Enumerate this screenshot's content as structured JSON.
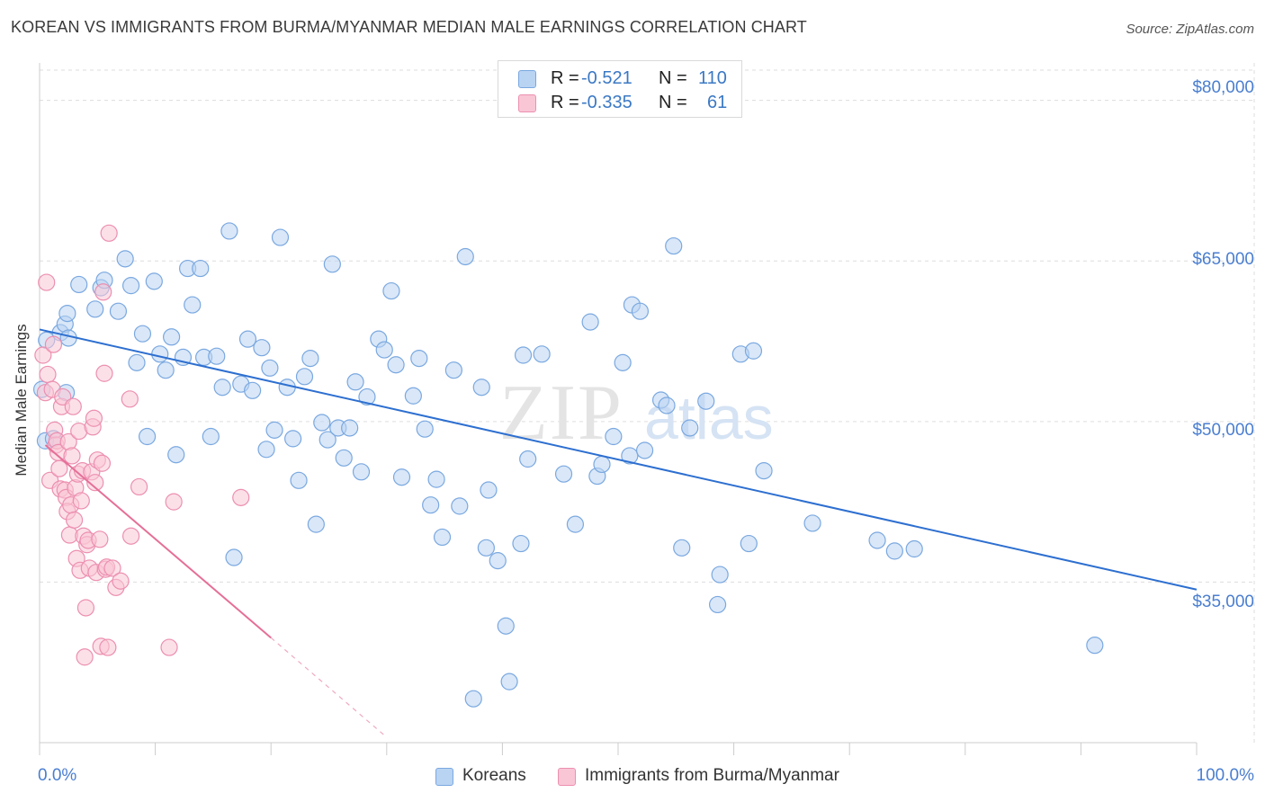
{
  "title": "KOREAN VS IMMIGRANTS FROM BURMA/MYANMAR MEDIAN MALE EARNINGS CORRELATION CHART",
  "source": "Source: ZipAtlas.com",
  "watermark": {
    "zip": "ZIP",
    "atlas": "atlas"
  },
  "colors": {
    "blue_fill": "#b9d3f3",
    "blue_stroke": "#7aa8e0",
    "blue_line": "#2d6fd0",
    "pink_fill": "#f9c6d6",
    "pink_stroke": "#ec8fb0",
    "pink_line": "#e56f98",
    "grid": "#dddddd",
    "axis_text": "#4a7ed0"
  },
  "legend": {
    "rows": [
      {
        "r_label": "R =",
        "r_value": "-0.521",
        "n_label": "N =",
        "n_value": "110"
      },
      {
        "r_label": "R =",
        "r_value": "-0.335",
        "n_label": "N =",
        "n_value": "61"
      }
    ]
  },
  "bottom_legend": [
    "Koreans",
    "Immigrants from Burma/Myanmar"
  ],
  "axes": {
    "ylabel": "Median Male Earnings",
    "x_min_label": "0.0%",
    "x_max_label": "100.0%",
    "y_tick_labels": [
      "$80,000",
      "$65,000",
      "$50,000",
      "$35,000"
    ]
  },
  "chart_data": {
    "type": "scatter",
    "title": "KOREAN VS IMMIGRANTS FROM BURMA/MYANMAR MEDIAN MALE EARNINGS CORRELATION CHART",
    "xlabel": "",
    "ylabel": "Median Male Earnings",
    "xlim": [
      0,
      100
    ],
    "ylim": [
      20000,
      83500
    ],
    "y_ticks": [
      35000,
      50000,
      65000,
      80000
    ],
    "x_ticks": [
      0,
      10,
      20,
      30,
      40,
      50,
      60,
      70,
      80,
      90,
      100
    ],
    "grid": true,
    "series": [
      {
        "name": "Koreans",
        "color": "#7aa8e0",
        "r": -0.521,
        "n": 110,
        "trend": {
          "x": [
            0,
            100
          ],
          "y": [
            58600,
            34300
          ]
        },
        "points": [
          [
            0.2,
            53000
          ],
          [
            0.5,
            48200
          ],
          [
            0.6,
            57600
          ],
          [
            1.2,
            48400
          ],
          [
            1.8,
            58300
          ],
          [
            2.2,
            59100
          ],
          [
            2.3,
            52700
          ],
          [
            2.4,
            60100
          ],
          [
            2.5,
            57800
          ],
          [
            3.4,
            62800
          ],
          [
            4.8,
            60500
          ],
          [
            5.3,
            62500
          ],
          [
            5.6,
            63200
          ],
          [
            6.8,
            60300
          ],
          [
            7.4,
            65200
          ],
          [
            7.9,
            62700
          ],
          [
            8.4,
            55500
          ],
          [
            8.9,
            58200
          ],
          [
            9.3,
            48600
          ],
          [
            9.9,
            63100
          ],
          [
            10.4,
            56300
          ],
          [
            10.9,
            54800
          ],
          [
            11.4,
            57900
          ],
          [
            11.8,
            46900
          ],
          [
            12.4,
            56000
          ],
          [
            12.8,
            64300
          ],
          [
            13.2,
            60900
          ],
          [
            13.9,
            64300
          ],
          [
            14.2,
            56000
          ],
          [
            14.8,
            48600
          ],
          [
            15.3,
            56100
          ],
          [
            15.8,
            53200
          ],
          [
            16.4,
            67800
          ],
          [
            16.8,
            37300
          ],
          [
            17.4,
            53500
          ],
          [
            18.0,
            57700
          ],
          [
            18.4,
            52900
          ],
          [
            19.2,
            56900
          ],
          [
            19.6,
            47400
          ],
          [
            19.9,
            55000
          ],
          [
            20.3,
            49200
          ],
          [
            20.8,
            67200
          ],
          [
            21.4,
            53200
          ],
          [
            21.9,
            48400
          ],
          [
            22.4,
            44500
          ],
          [
            22.9,
            54200
          ],
          [
            23.4,
            55900
          ],
          [
            23.9,
            40400
          ],
          [
            24.4,
            49900
          ],
          [
            24.9,
            48300
          ],
          [
            25.3,
            64700
          ],
          [
            25.8,
            49400
          ],
          [
            26.3,
            46600
          ],
          [
            26.8,
            49400
          ],
          [
            27.3,
            53700
          ],
          [
            27.8,
            45300
          ],
          [
            28.3,
            52300
          ],
          [
            29.3,
            57700
          ],
          [
            29.8,
            56700
          ],
          [
            30.4,
            62200
          ],
          [
            30.8,
            55300
          ],
          [
            31.3,
            44800
          ],
          [
            32.3,
            52400
          ],
          [
            32.8,
            55900
          ],
          [
            33.3,
            49300
          ],
          [
            33.8,
            42200
          ],
          [
            34.3,
            44600
          ],
          [
            34.8,
            39200
          ],
          [
            35.8,
            54800
          ],
          [
            36.3,
            42100
          ],
          [
            36.8,
            65400
          ],
          [
            37.5,
            24100
          ],
          [
            38.2,
            53200
          ],
          [
            38.6,
            38200
          ],
          [
            38.8,
            43600
          ],
          [
            39.6,
            37000
          ],
          [
            40.3,
            30900
          ],
          [
            40.6,
            25700
          ],
          [
            41.6,
            38600
          ],
          [
            41.8,
            56200
          ],
          [
            42.2,
            46500
          ],
          [
            43.4,
            56300
          ],
          [
            45.3,
            45100
          ],
          [
            46.3,
            40400
          ],
          [
            47.6,
            59300
          ],
          [
            48.2,
            44900
          ],
          [
            48.6,
            46000
          ],
          [
            49.6,
            48600
          ],
          [
            50.4,
            55500
          ],
          [
            51.0,
            46800
          ],
          [
            51.2,
            60900
          ],
          [
            51.9,
            60300
          ],
          [
            52.3,
            47300
          ],
          [
            53.7,
            52000
          ],
          [
            54.2,
            51500
          ],
          [
            54.8,
            66400
          ],
          [
            55.5,
            38200
          ],
          [
            56.2,
            49400
          ],
          [
            57.6,
            51900
          ],
          [
            58.6,
            32900
          ],
          [
            58.8,
            35700
          ],
          [
            60.6,
            56300
          ],
          [
            61.3,
            38600
          ],
          [
            61.7,
            56600
          ],
          [
            62.6,
            45400
          ],
          [
            66.8,
            40500
          ],
          [
            72.4,
            38900
          ],
          [
            73.9,
            37900
          ],
          [
            75.6,
            38100
          ],
          [
            91.2,
            29100
          ]
        ]
      },
      {
        "name": "Immigrants from Burma/Myanmar",
        "color": "#ec8fb0",
        "r": -0.335,
        "n": 61,
        "trend": {
          "x": [
            0.5,
            20
          ],
          "y": [
            47800,
            29800
          ],
          "extension": {
            "x": [
              20,
              30
            ],
            "y": [
              29800,
              20500
            ]
          }
        },
        "points": [
          [
            0.3,
            56200
          ],
          [
            0.5,
            52700
          ],
          [
            0.6,
            63000
          ],
          [
            0.7,
            54400
          ],
          [
            0.9,
            44500
          ],
          [
            1.1,
            53000
          ],
          [
            1.2,
            57200
          ],
          [
            1.3,
            49200
          ],
          [
            1.4,
            47800
          ],
          [
            1.5,
            48200
          ],
          [
            1.6,
            47100
          ],
          [
            1.7,
            45600
          ],
          [
            1.8,
            43700
          ],
          [
            1.9,
            51400
          ],
          [
            2.0,
            52300
          ],
          [
            2.2,
            43600
          ],
          [
            2.3,
            42900
          ],
          [
            2.4,
            41600
          ],
          [
            2.5,
            48100
          ],
          [
            2.6,
            39400
          ],
          [
            2.7,
            42200
          ],
          [
            2.8,
            46800
          ],
          [
            2.9,
            51400
          ],
          [
            3.0,
            40800
          ],
          [
            3.1,
            43800
          ],
          [
            3.2,
            37200
          ],
          [
            3.3,
            45100
          ],
          [
            3.4,
            49100
          ],
          [
            3.5,
            36100
          ],
          [
            3.6,
            42600
          ],
          [
            3.7,
            45400
          ],
          [
            3.8,
            39300
          ],
          [
            3.9,
            28000
          ],
          [
            4.0,
            32600
          ],
          [
            4.1,
            38500
          ],
          [
            4.2,
            38900
          ],
          [
            4.3,
            36300
          ],
          [
            4.5,
            45300
          ],
          [
            4.6,
            49500
          ],
          [
            4.7,
            50300
          ],
          [
            4.8,
            44300
          ],
          [
            4.9,
            35900
          ],
          [
            5.0,
            46400
          ],
          [
            5.2,
            39000
          ],
          [
            5.3,
            29000
          ],
          [
            5.4,
            46100
          ],
          [
            5.5,
            62100
          ],
          [
            5.6,
            54500
          ],
          [
            5.7,
            36200
          ],
          [
            5.8,
            36400
          ],
          [
            5.9,
            28900
          ],
          [
            6.0,
            67600
          ],
          [
            6.3,
            36300
          ],
          [
            6.6,
            34500
          ],
          [
            7.0,
            35100
          ],
          [
            7.8,
            52100
          ],
          [
            7.9,
            39300
          ],
          [
            8.6,
            43900
          ],
          [
            11.6,
            42500
          ],
          [
            11.2,
            28900
          ],
          [
            17.4,
            42900
          ]
        ]
      }
    ]
  }
}
